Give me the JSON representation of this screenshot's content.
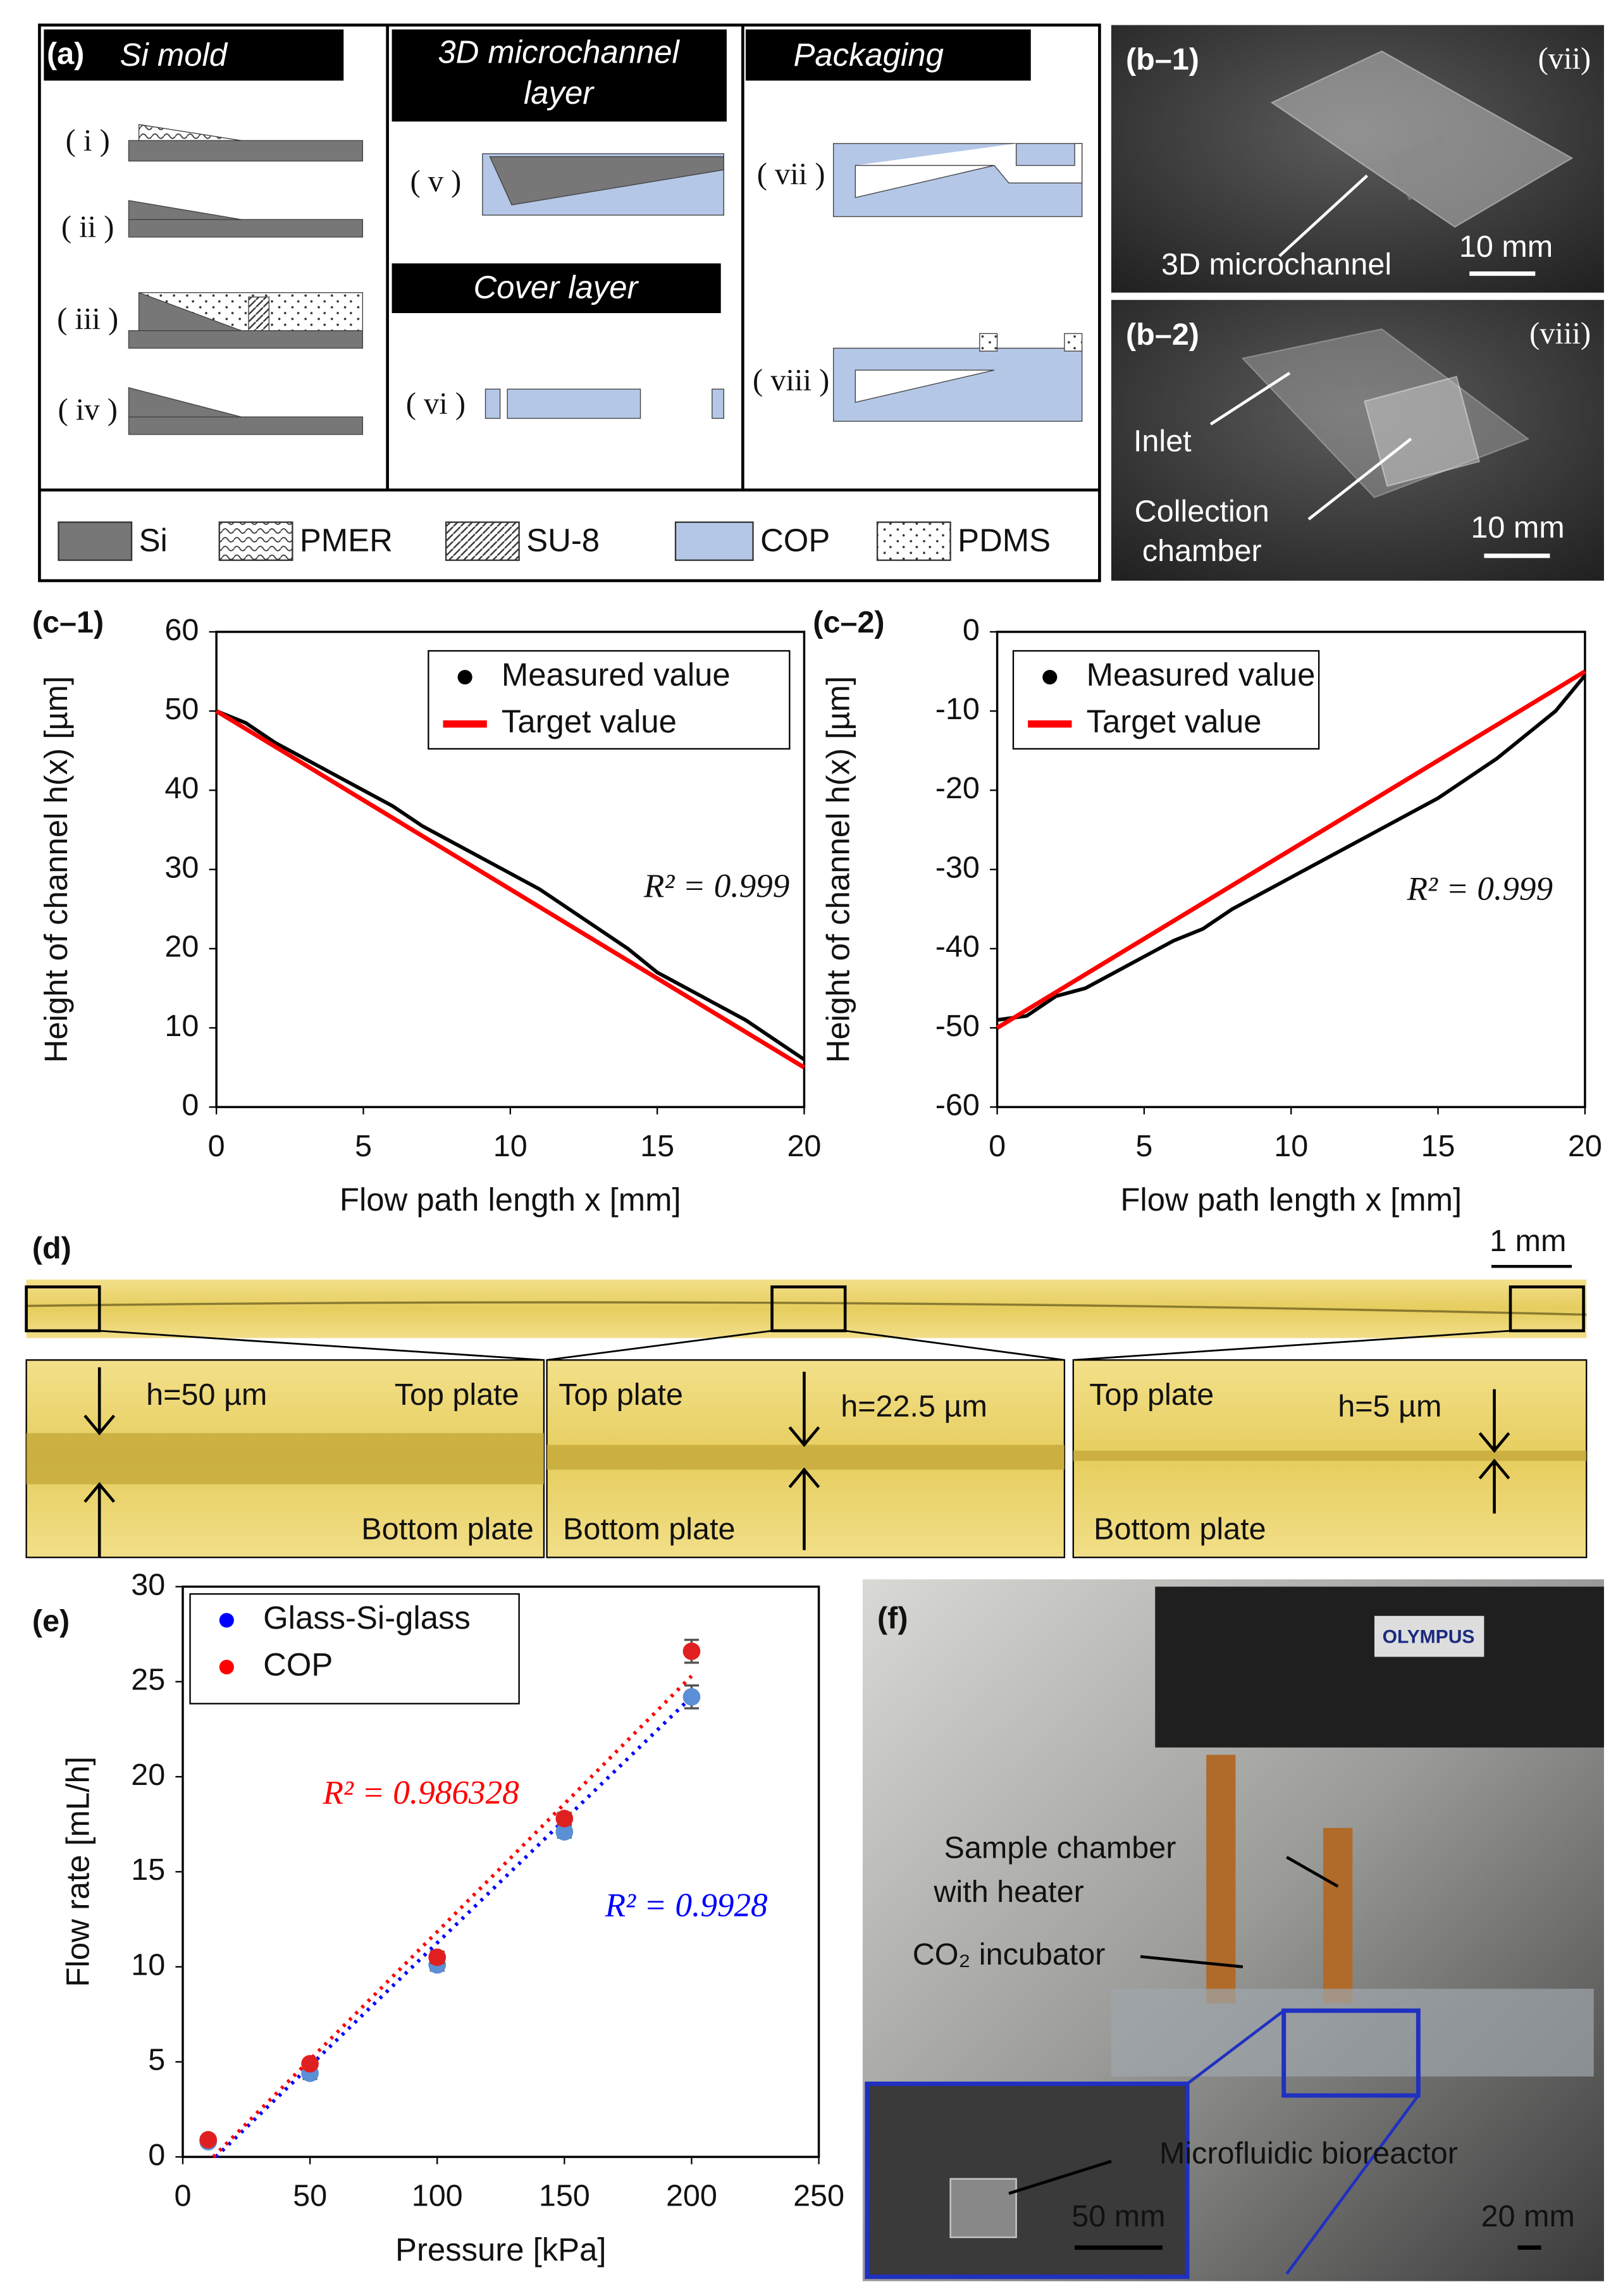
{
  "panel_a": {
    "label": "(a)",
    "si_mold": "Si mold",
    "microchannel_layer": [
      "3D microchannel",
      "layer"
    ],
    "packaging": "Packaging",
    "cover_layer": "Cover layer",
    "steps": [
      "( i )",
      "( ii )",
      "( iii )",
      "( iv )",
      "( v )",
      "( vi )",
      "( vii )",
      "( viii )"
    ],
    "legend": [
      "Si",
      "PMER",
      "SU-8",
      "COP",
      "PDMS"
    ]
  },
  "panel_b": {
    "b1": {
      "label": "(b–1)",
      "step": "(vii)",
      "callout": "3D microchannel",
      "scale": "10 mm"
    },
    "b2": {
      "label": "(b–2)",
      "step": "(viii)",
      "inlet": "Inlet",
      "chamber": [
        "Collection",
        "chamber"
      ],
      "scale": "10 mm"
    }
  },
  "panel_d": {
    "label": "(d)",
    "scale": "1 mm",
    "insets": [
      {
        "height": "h=50 µm",
        "top": "Top plate",
        "bottom": "Bottom plate"
      },
      {
        "height": "h=22.5 µm",
        "top": "Top plate",
        "bottom": "Bottom plate"
      },
      {
        "height": "h=5 µm",
        "top": "Top plate",
        "bottom": "Bottom plate"
      }
    ]
  },
  "panel_f": {
    "label": "(f)",
    "brand": "OLYMPUS",
    "sample_chamber": [
      "Sample chamber",
      "with heater"
    ],
    "incubator": "CO₂ incubator",
    "bioreactor": "Microfluidic bioreactor",
    "scale_inset": "50 mm",
    "scale": "20 mm"
  },
  "chart_data": [
    {
      "type": "line",
      "label": "(c–1)",
      "xlabel": "Flow path length x [mm]",
      "ylabel": "Height of channel h(x) [µm]",
      "xlim": [
        0,
        20
      ],
      "xticks": [
        0,
        5,
        10,
        15,
        20
      ],
      "ylim": [
        0,
        60
      ],
      "yticks": [
        0,
        10,
        20,
        30,
        40,
        50,
        60
      ],
      "series": [
        {
          "name": "Measured value",
          "color": "#000000",
          "legend_symbol": "dot",
          "x": [
            0,
            1,
            2,
            3,
            4,
            5,
            6,
            7,
            8,
            9,
            10,
            11,
            12,
            13,
            14,
            15,
            16,
            17,
            18,
            19,
            20
          ],
          "values": [
            50,
            48.5,
            46,
            44,
            42,
            40,
            38,
            35.5,
            33.5,
            31.5,
            29.5,
            27.5,
            25,
            22.5,
            20,
            17,
            15,
            13,
            11,
            8.5,
            6
          ]
        },
        {
          "name": "Target value",
          "color": "#ff0000",
          "legend_symbol": "line",
          "x": [
            0,
            20
          ],
          "values": [
            50,
            5
          ]
        }
      ],
      "annotations": [
        {
          "text": "R² = 0.999",
          "color": "#111111"
        }
      ]
    },
    {
      "type": "line",
      "label": "(c–2)",
      "xlabel": "Flow path length x [mm]",
      "ylabel": "Height of channel h(x) [µm]",
      "xlim": [
        0,
        20
      ],
      "xticks": [
        0,
        5,
        10,
        15,
        20
      ],
      "ylim": [
        -60,
        0
      ],
      "yticks": [
        -60,
        -50,
        -40,
        -30,
        -20,
        -10,
        0
      ],
      "series": [
        {
          "name": "Measured value",
          "color": "#000000",
          "legend_symbol": "dot",
          "x": [
            0,
            1,
            2,
            3,
            4,
            5,
            6,
            7,
            8,
            9,
            10,
            11,
            12,
            13,
            14,
            15,
            16,
            17,
            18,
            19,
            20
          ],
          "values": [
            -49,
            -48.5,
            -46,
            -45,
            -43,
            -41,
            -39,
            -37.5,
            -35,
            -33,
            -31,
            -29,
            -27,
            -25,
            -23,
            -21,
            -18.5,
            -16,
            -13,
            -10,
            -5.5
          ]
        },
        {
          "name": "Target value",
          "color": "#ff0000",
          "legend_symbol": "line",
          "x": [
            0,
            20
          ],
          "values": [
            -50,
            -5
          ]
        }
      ],
      "annotations": [
        {
          "text": "R² = 0.999",
          "color": "#111111"
        }
      ]
    },
    {
      "type": "scatter",
      "label": "(e)",
      "xlabel": "Pressure [kPa]",
      "ylabel": "Flow rate [mL/h]",
      "xlim": [
        0,
        250
      ],
      "xticks": [
        0,
        50,
        100,
        150,
        200,
        250
      ],
      "ylim": [
        0,
        30
      ],
      "yticks": [
        0,
        5,
        10,
        15,
        20,
        25,
        30
      ],
      "series": [
        {
          "name": "Glass-Si-glass",
          "color": "#0000ff",
          "marker_color": "#5b8fd6",
          "x": [
            10,
            50,
            100,
            150,
            200
          ],
          "values": [
            0.8,
            4.4,
            10.1,
            17.1,
            24.2
          ],
          "errors": [
            0.1,
            0.3,
            0.3,
            0.3,
            0.6
          ],
          "trend_x": [
            13,
            200
          ],
          "trend_values": [
            0,
            24.2
          ]
        },
        {
          "name": "COP",
          "color": "#ff0000",
          "marker_color": "#e02020",
          "x": [
            10,
            50,
            100,
            150,
            200
          ],
          "values": [
            0.9,
            4.9,
            10.5,
            17.8,
            26.6
          ],
          "errors": [
            0.1,
            0.2,
            0.3,
            0.3,
            0.6
          ],
          "trend_x": [
            12,
            200
          ],
          "trend_values": [
            0,
            25.3
          ]
        }
      ],
      "annotations": [
        {
          "text": "R² = 0.986328",
          "color": "#ff0000"
        },
        {
          "text": "R² = 0.9928",
          "color": "#0000ff"
        }
      ]
    }
  ]
}
